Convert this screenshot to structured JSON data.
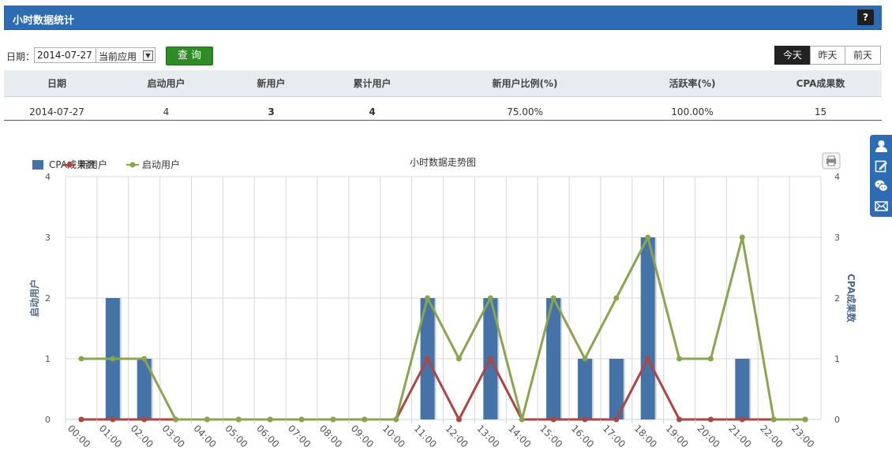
{
  "header": {
    "title": "小时数据统计",
    "help_label": "?"
  },
  "filter": {
    "date_label": "日期：",
    "date_value": "2014-07-27",
    "app_value": "当前应用",
    "query_label": "查 询"
  },
  "day_tabs": [
    {
      "label": "今天",
      "active": true
    },
    {
      "label": "昨天",
      "active": false
    },
    {
      "label": "前天",
      "active": false
    }
  ],
  "table": {
    "headers": [
      "日期",
      "启动用户",
      "新用户",
      "累计用户",
      "新用户比例(%)",
      "活跃率(%)",
      "CPA成果数"
    ],
    "row": [
      "2014-07-27",
      "4",
      "3",
      "4",
      "75.00%",
      "100.00%",
      "15"
    ]
  },
  "sidebar_icons": [
    "user-icon",
    "edit-icon",
    "wechat-icon",
    "mail-icon"
  ],
  "chart_data": {
    "type": "bar+line",
    "title": "小时数据走势图",
    "categories": [
      "00:00",
      "01:00",
      "02:00",
      "03:00",
      "04:00",
      "05:00",
      "06:00",
      "07:00",
      "08:00",
      "09:00",
      "10:00",
      "11:00",
      "12:00",
      "13:00",
      "14:00",
      "15:00",
      "16:00",
      "17:00",
      "18:00",
      "19:00",
      "20:00",
      "21:00",
      "22:00",
      "23:00"
    ],
    "ylabel_left": "启动用户",
    "ylabel_right": "CPA成果数",
    "ylim": [
      0,
      4
    ],
    "yticks": [
      0,
      1,
      2,
      3,
      4
    ],
    "grid": true,
    "legend_position": "top-left",
    "series": [
      {
        "name": "CPA成果数",
        "type": "bar",
        "color": "#4572a7",
        "values": [
          0,
          2,
          1,
          0,
          0,
          0,
          0,
          0,
          0,
          0,
          0,
          2,
          0,
          2,
          0,
          2,
          1,
          1,
          3,
          0,
          0,
          1,
          0,
          0
        ]
      },
      {
        "name": "新用户",
        "type": "line",
        "color": "#aa4643",
        "values": [
          0,
          0,
          0,
          0,
          0,
          0,
          0,
          0,
          0,
          0,
          0,
          1,
          0,
          1,
          0,
          0,
          0,
          0,
          1,
          0,
          0,
          0,
          0,
          0
        ]
      },
      {
        "name": "启动用户",
        "type": "line",
        "color": "#89a54e",
        "values": [
          1,
          1,
          1,
          0,
          0,
          0,
          0,
          0,
          0,
          0,
          0,
          2,
          1,
          2,
          0,
          2,
          1,
          2,
          3,
          1,
          1,
          3,
          0,
          0
        ]
      }
    ]
  }
}
